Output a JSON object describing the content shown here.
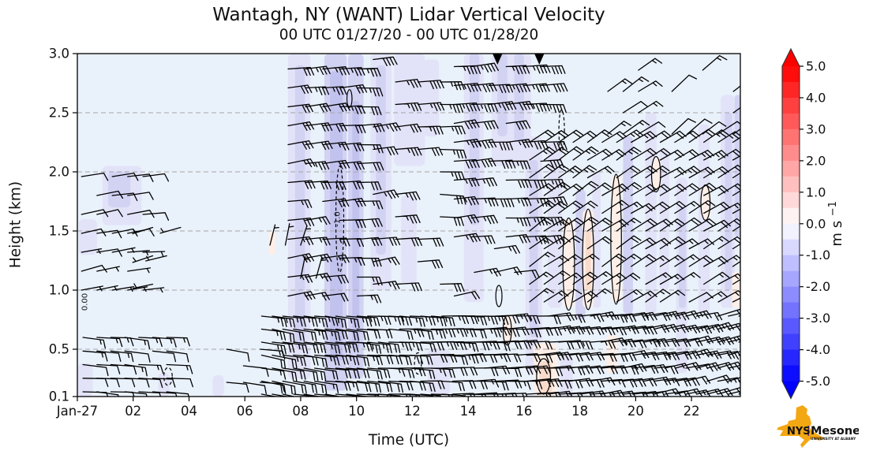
{
  "title": {
    "main": "Wantagh, NY (WANT) Lidar Vertical Velocity",
    "sub": "00 UTC 01/27/20 - 00 UTC 01/28/20"
  },
  "axes": {
    "xlabel": "Time (UTC)",
    "ylabel": "Height (km)",
    "x_range": [
      0,
      23.75
    ],
    "y_range": [
      0.1,
      3.0
    ],
    "x_ticks": [
      {
        "t": 0,
        "label": "Jan-27"
      },
      {
        "t": 2,
        "label": "02"
      },
      {
        "t": 4,
        "label": "04"
      },
      {
        "t": 6,
        "label": "06"
      },
      {
        "t": 8,
        "label": "08"
      },
      {
        "t": 10,
        "label": "10"
      },
      {
        "t": 12,
        "label": "12"
      },
      {
        "t": 14,
        "label": "14"
      },
      {
        "t": 16,
        "label": "16"
      },
      {
        "t": 18,
        "label": "18"
      },
      {
        "t": 20,
        "label": "20"
      },
      {
        "t": 22,
        "label": "22"
      }
    ],
    "y_ticks": [
      {
        "z": 3.0,
        "label": "3.0"
      },
      {
        "z": 2.5,
        "label": "2.5"
      },
      {
        "z": 2.0,
        "label": "2.0"
      },
      {
        "z": 1.5,
        "label": "1.5"
      },
      {
        "z": 1.0,
        "label": "1.0"
      },
      {
        "z": 0.5,
        "label": "0.5"
      },
      {
        "z": 0.1,
        "label": "0.1"
      }
    ],
    "grid_z": [
      0.5,
      1.0,
      1.5,
      2.0,
      2.5
    ]
  },
  "colorbar": {
    "ticks": [
      "5.0",
      "4.0",
      "3.0",
      "2.0",
      "1.0",
      "0.0",
      "-1.0",
      "-2.0",
      "-3.0",
      "-4.0",
      "-5.0"
    ],
    "tick_values": [
      5,
      4,
      3,
      2,
      1,
      0,
      -1,
      -2,
      -3,
      -4,
      -5
    ],
    "label_base": "m s",
    "label_exp": "−1",
    "vmin": -5.0,
    "vmax": 5.0,
    "levels": 20,
    "cmap": "bwr",
    "extend": "both",
    "color_neg": "#0000ff",
    "color_mid": "#ffffff",
    "color_pos": "#ff0000"
  },
  "logo": {
    "nys": "NYS",
    "name": "Mesonet",
    "sub": "UNIVERSITY AT ALBANY",
    "state_color": "#F3A712",
    "text_color": "#5B2A86"
  },
  "chart_data": {
    "type": "heatmap+barbs",
    "field": "lidar vertical velocity (m/s), shaded with bwr colormap; wind barbs in knots",
    "time_units": "hours since 00 UTC 01/27/20",
    "background": "#e9f1fb",
    "palette": {
      "A": "#e2e2f8",
      "B": "#d2d2f3",
      "C": "#c2c2ee",
      "P": "#fdefe8",
      "Q": "#f8dbcc"
    },
    "shading_patches": [
      [
        0.0,
        0.55,
        0.1,
        0.38,
        "A"
      ],
      [
        0.9,
        2.3,
        1.55,
        2.05,
        "A"
      ],
      [
        1.1,
        1.9,
        1.7,
        2.0,
        "B"
      ],
      [
        0.05,
        0.7,
        1.3,
        1.6,
        "A"
      ],
      [
        2.9,
        3.3,
        0.1,
        0.3,
        "A"
      ],
      [
        4.85,
        5.25,
        0.1,
        0.28,
        "A"
      ],
      [
        7.55,
        8.35,
        0.25,
        3.0,
        "A"
      ],
      [
        7.8,
        8.15,
        0.5,
        2.9,
        "B"
      ],
      [
        8.85,
        9.65,
        0.15,
        3.0,
        "B"
      ],
      [
        9.05,
        9.5,
        0.4,
        2.85,
        "C"
      ],
      [
        9.7,
        10.25,
        0.25,
        3.0,
        "B"
      ],
      [
        9.85,
        10.1,
        0.5,
        2.6,
        "C"
      ],
      [
        10.5,
        11.25,
        1.0,
        3.0,
        "A"
      ],
      [
        10.7,
        11.05,
        1.3,
        2.9,
        "B"
      ],
      [
        11.35,
        12.45,
        2.05,
        3.0,
        "A"
      ],
      [
        11.6,
        12.15,
        1.05,
        1.8,
        "A"
      ],
      [
        12.4,
        12.95,
        2.3,
        2.95,
        "A"
      ],
      [
        12.55,
        13.35,
        0.12,
        0.5,
        "A"
      ],
      [
        13.85,
        14.55,
        0.9,
        3.0,
        "A"
      ],
      [
        14.05,
        14.4,
        1.55,
        3.0,
        "B"
      ],
      [
        14.85,
        16.25,
        2.05,
        3.0,
        "A"
      ],
      [
        15.05,
        15.4,
        2.3,
        3.0,
        "B"
      ],
      [
        15.65,
        16.0,
        2.25,
        3.0,
        "B"
      ],
      [
        16.05,
        16.65,
        0.3,
        2.3,
        "A"
      ],
      [
        16.2,
        16.5,
        0.6,
        2.1,
        "B"
      ],
      [
        16.85,
        17.35,
        0.85,
        2.25,
        "A"
      ],
      [
        17.3,
        17.75,
        0.1,
        0.45,
        "A"
      ],
      [
        17.85,
        18.2,
        0.75,
        1.85,
        "B"
      ],
      [
        18.45,
        18.75,
        0.85,
        2.0,
        "A"
      ],
      [
        19.55,
        19.9,
        0.8,
        2.3,
        "B"
      ],
      [
        20.35,
        20.75,
        0.8,
        2.5,
        "A"
      ],
      [
        20.85,
        21.2,
        1.0,
        2.2,
        "A"
      ],
      [
        21.45,
        21.85,
        0.3,
        1.95,
        "A"
      ],
      [
        21.55,
        21.8,
        0.85,
        1.7,
        "B"
      ],
      [
        22.25,
        22.65,
        0.8,
        2.4,
        "A"
      ],
      [
        23.05,
        23.55,
        0.85,
        2.65,
        "A"
      ],
      [
        23.2,
        23.45,
        1.0,
        2.5,
        "B"
      ],
      [
        23.55,
        23.8,
        1.45,
        2.65,
        "B"
      ],
      [
        16.35,
        17.2,
        0.1,
        0.55,
        "P"
      ],
      [
        16.55,
        17.0,
        0.12,
        0.4,
        "Q"
      ],
      [
        17.4,
        17.8,
        0.85,
        1.6,
        "P"
      ],
      [
        18.1,
        18.5,
        0.85,
        1.68,
        "P"
      ],
      [
        18.2,
        18.4,
        1.0,
        1.5,
        "Q"
      ],
      [
        19.12,
        19.5,
        0.9,
        1.97,
        "P"
      ],
      [
        18.95,
        19.35,
        0.3,
        0.62,
        "P"
      ],
      [
        20.6,
        20.9,
        1.85,
        2.12,
        "P"
      ],
      [
        22.35,
        22.68,
        1.6,
        1.88,
        "P"
      ],
      [
        23.45,
        23.75,
        0.85,
        1.15,
        "P"
      ],
      [
        15.25,
        15.6,
        0.55,
        0.78,
        "P"
      ],
      [
        6.85,
        7.1,
        1.3,
        1.5,
        "P"
      ]
    ],
    "contours": [
      {
        "t": 17.6,
        "z": 1.22,
        "w": 0.42,
        "h": 0.78,
        "dash": false
      },
      {
        "t": 18.3,
        "z": 1.26,
        "w": 0.4,
        "h": 0.85,
        "dash": false
      },
      {
        "t": 19.3,
        "z": 1.43,
        "w": 0.38,
        "h": 1.1,
        "dash": false
      },
      {
        "t": 20.73,
        "z": 1.98,
        "w": 0.32,
        "h": 0.3,
        "dash": false
      },
      {
        "t": 22.5,
        "z": 1.74,
        "w": 0.33,
        "h": 0.3,
        "dash": false
      },
      {
        "t": 15.4,
        "z": 0.66,
        "w": 0.3,
        "h": 0.25,
        "dash": false
      },
      {
        "t": 15.1,
        "z": 0.95,
        "w": 0.22,
        "h": 0.18,
        "dash": false
      },
      {
        "t": 16.7,
        "z": 0.27,
        "w": 0.5,
        "h": 0.3,
        "dash": false
      },
      {
        "t": 9.75,
        "z": 2.62,
        "w": 0.18,
        "h": 0.15,
        "dash": false
      },
      {
        "t": 9.4,
        "z": 1.6,
        "w": 0.28,
        "h": 0.9,
        "dash": true,
        "label": "-1.0"
      },
      {
        "t": 17.35,
        "z": 2.35,
        "w": 0.2,
        "h": 0.35,
        "dash": true
      },
      {
        "t": 3.25,
        "z": 0.27,
        "w": 0.3,
        "h": 0.15,
        "dash": true
      },
      {
        "t": 12.2,
        "z": 0.38,
        "w": 0.25,
        "h": 0.18,
        "dash": true
      },
      {
        "t": 0.35,
        "z": 0.9,
        "w": 0,
        "h": 0,
        "dash": false,
        "label": "0.00"
      }
    ],
    "barb_regions": [
      {
        "t0": 0.2,
        "t1": 3.55,
        "dt": 0.5,
        "z0": 0.14,
        "z1": 0.6,
        "dz": 0.115,
        "dir0": 95,
        "dir1": 95,
        "spd0": 8,
        "spd1": 16,
        "cov": 0.82
      },
      {
        "t0": 0.15,
        "t1": 2.65,
        "dt": 0.55,
        "z0": 1.0,
        "z1": 2.05,
        "dz": 0.16,
        "dir0": 78,
        "dir1": 85,
        "spd0": 5,
        "spd1": 12,
        "cov": 0.68
      },
      {
        "t0": 2.7,
        "t1": 3.7,
        "dt": 0.5,
        "z0": 1.05,
        "z1": 1.55,
        "dz": 0.24,
        "dir0": 255,
        "dir1": 255,
        "spd0": 3,
        "spd1": 6,
        "cov": 0.7
      },
      {
        "t0": 5.35,
        "t1": 6.55,
        "dt": 0.6,
        "z0": 0.22,
        "z1": 0.52,
        "dz": 0.14,
        "dir0": 97,
        "dir1": 97,
        "spd0": 8,
        "spd1": 14,
        "cov": 0.78
      },
      {
        "t0": 6.6,
        "t1": 23.9,
        "dt": 0.38,
        "z0": 0.12,
        "z1": 0.88,
        "dz": 0.11,
        "dir0": 100,
        "dir1": 75,
        "spd0": 15,
        "spd1": 28,
        "cov": 0.97
      },
      {
        "t0": 7.55,
        "t1": 10.45,
        "dt": 0.62,
        "z0": 0.95,
        "z1": 3.02,
        "dz": 0.16,
        "dir0": 82,
        "dir1": 88,
        "spd0": 20,
        "spd1": 38,
        "cov": 0.93
      },
      {
        "t0": 6.9,
        "t1": 8.6,
        "dt": 0.55,
        "z0": 1.1,
        "z1": 1.4,
        "dz": 0.28,
        "dir0": 15,
        "dir1": 15,
        "spd0": 3,
        "spd1": 7,
        "cov": 0.5
      },
      {
        "t0": 10.6,
        "t1": 13.25,
        "dt": 0.8,
        "z0": 1.05,
        "z1": 3.02,
        "dz": 0.19,
        "dir0": 82,
        "dir1": 92,
        "spd0": 25,
        "spd1": 40,
        "cov": 0.78
      },
      {
        "t0": 13.5,
        "t1": 16.6,
        "dt": 0.62,
        "z0": 1.45,
        "z1": 3.02,
        "dz": 0.16,
        "dir0": 84,
        "dir1": 88,
        "spd0": 30,
        "spd1": 50,
        "cov": 0.9
      },
      {
        "t0": 13.5,
        "t1": 16.3,
        "dt": 0.72,
        "z0": 0.95,
        "z1": 1.45,
        "dz": 0.2,
        "dir0": 76,
        "dir1": 84,
        "spd0": 18,
        "spd1": 30,
        "cov": 0.55
      },
      {
        "t0": 16.2,
        "t1": 23.9,
        "dt": 0.52,
        "z0": 0.9,
        "z1": 2.25,
        "dz": 0.15,
        "dir0": 55,
        "dir1": 60,
        "spd0": 12,
        "spd1": 25,
        "cov": 0.93
      },
      {
        "t0": 19.0,
        "t1": 20.35,
        "dt": 0.55,
        "z0": 2.32,
        "z1": 3.0,
        "dz": 0.18,
        "dir0": 52,
        "dir1": 58,
        "spd0": 10,
        "spd1": 20,
        "cov": 0.7
      },
      {
        "t0": 21.3,
        "t1": 23.85,
        "dt": 0.55,
        "z0": 2.32,
        "z1": 3.0,
        "dz": 0.18,
        "dir0": 50,
        "dir1": 56,
        "spd0": 8,
        "spd1": 18,
        "cov": 0.62
      }
    ],
    "top_pennants": [
      {
        "t": 15.05,
        "z": 3.0
      },
      {
        "t": 16.55,
        "z": 3.0
      }
    ],
    "seed": 12
  }
}
